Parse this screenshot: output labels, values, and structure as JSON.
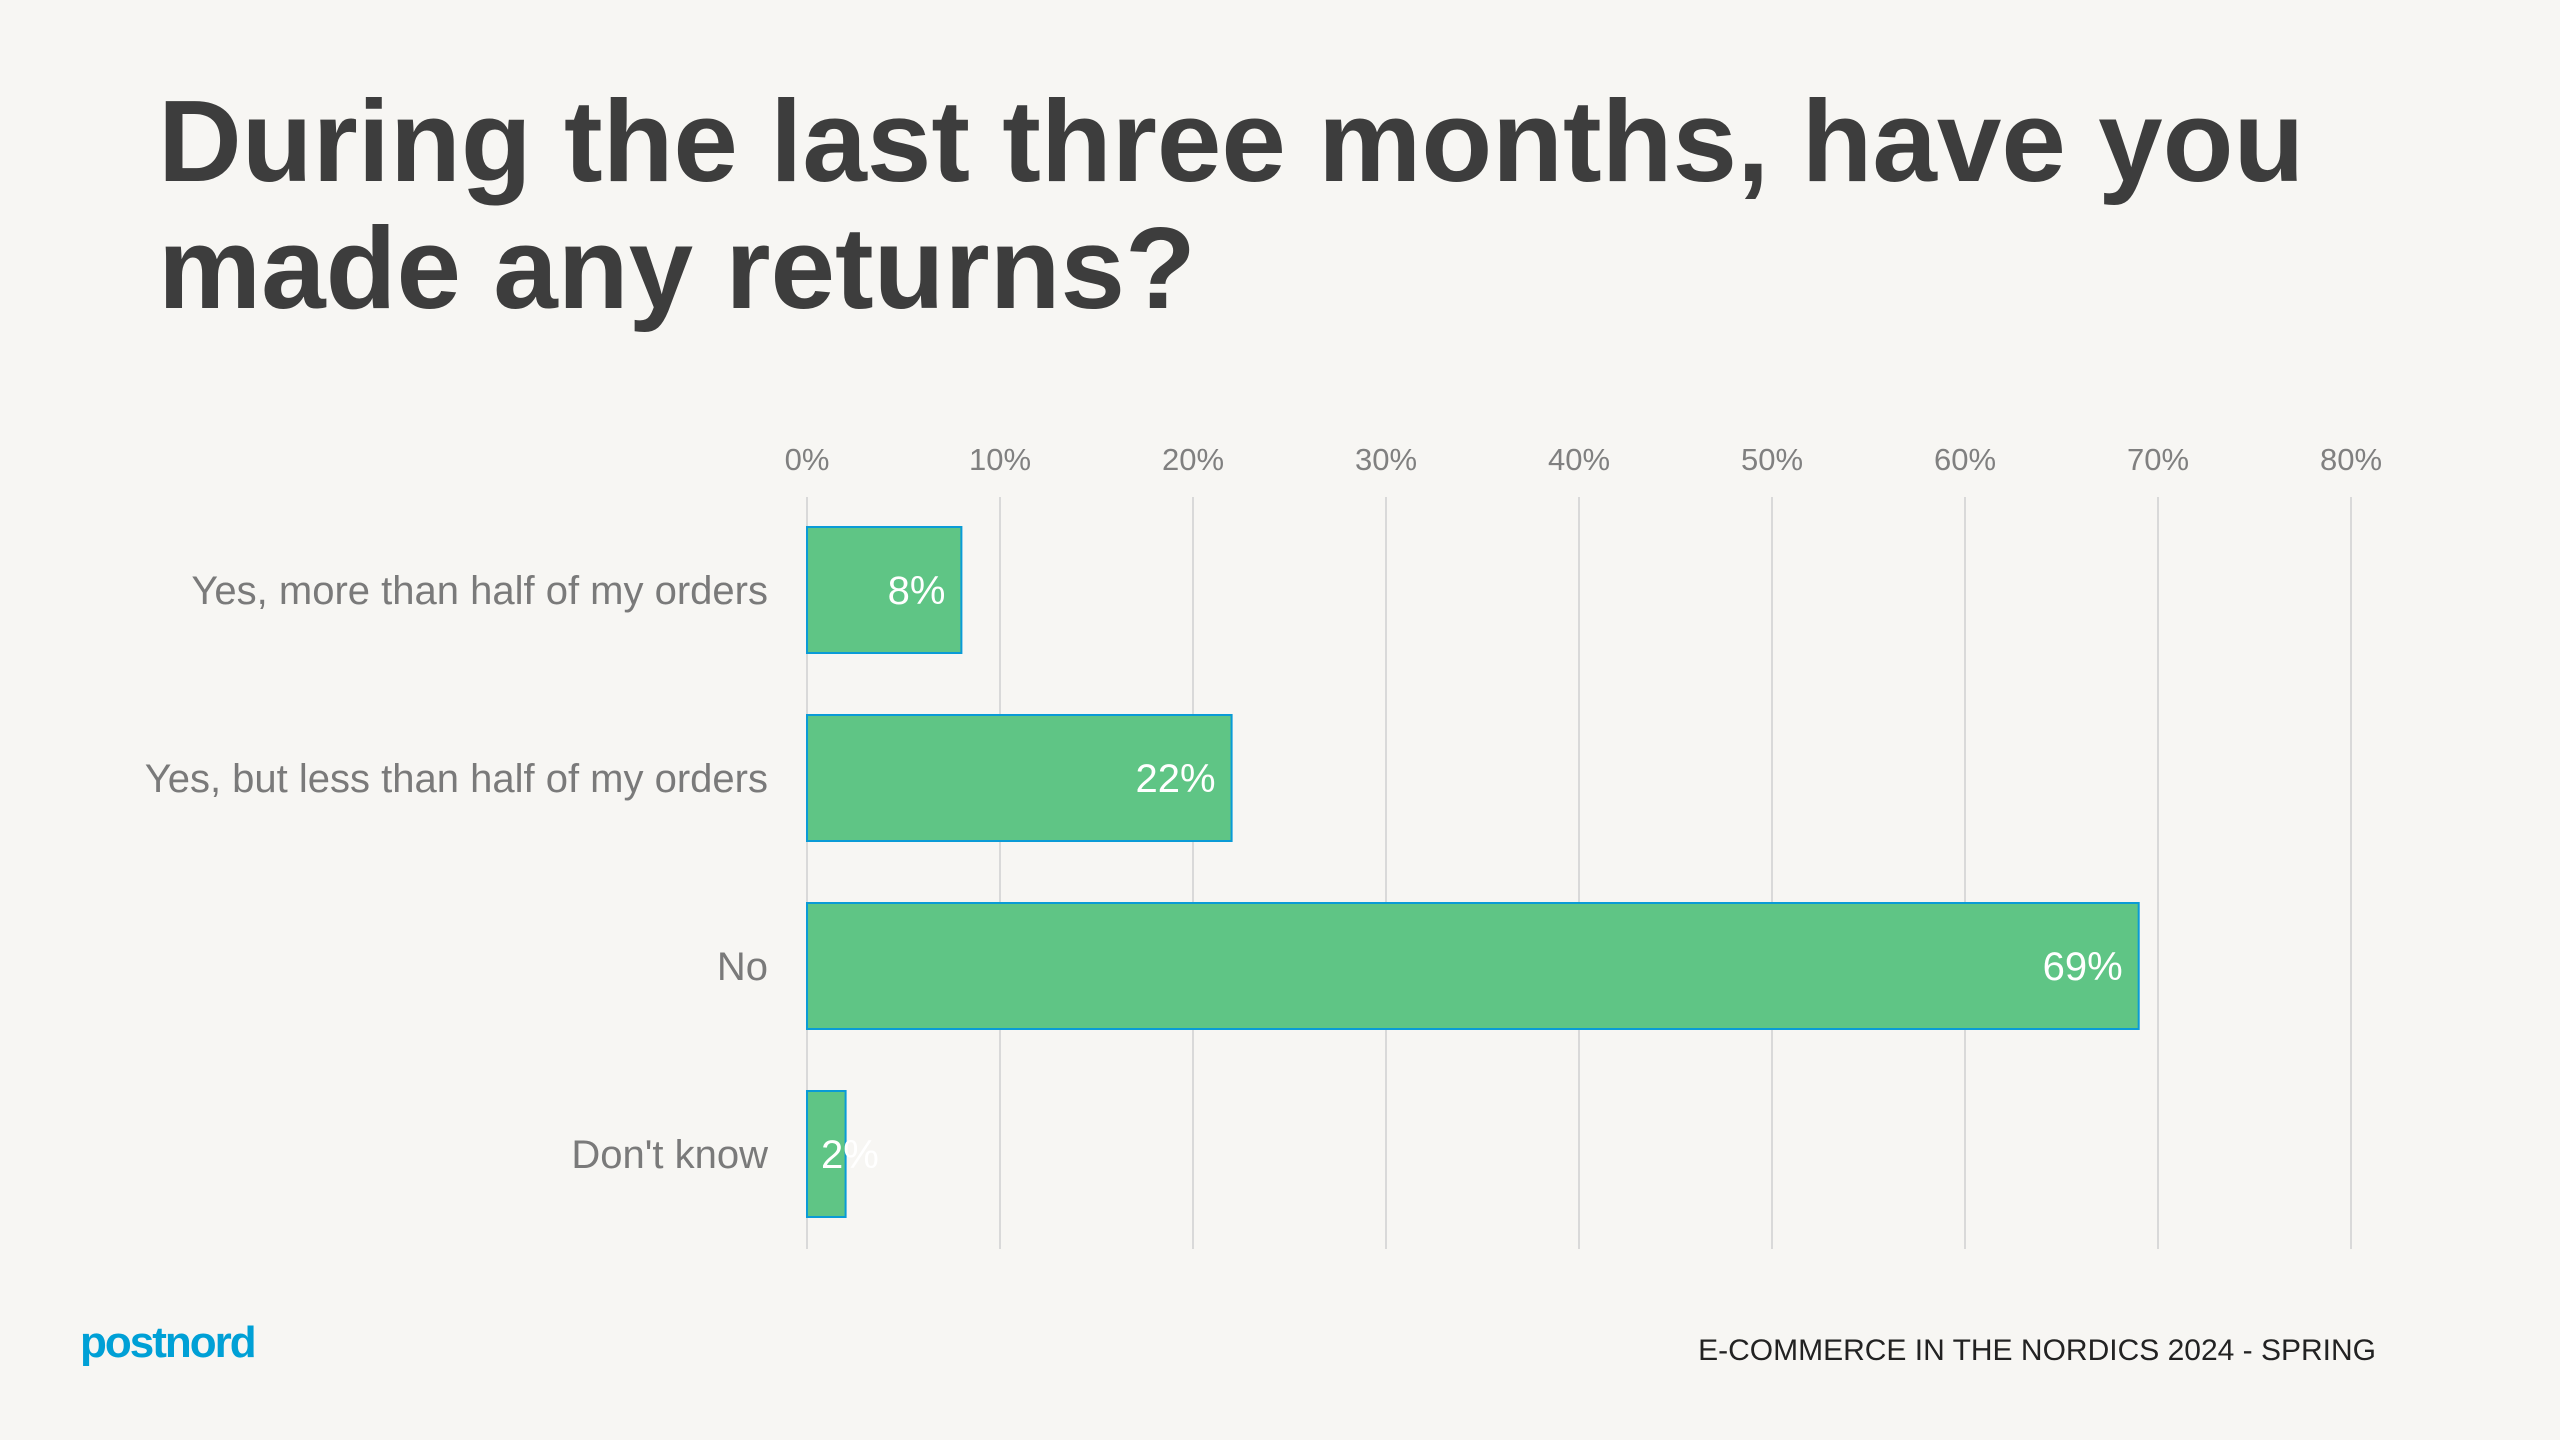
{
  "title": "During the last three months, have you made any returns?",
  "footer": {
    "logo_text": "postnord",
    "report": "E-COMMERCE IN THE NORDICS 2024 - SPRING"
  },
  "colors": {
    "bar": "#5fc585",
    "bar_border": "#0a9bd6",
    "grid": "#d9d9d9",
    "brand": "#00a0d6"
  },
  "chart_data": {
    "type": "bar",
    "orientation": "horizontal",
    "categories": [
      "Yes, more than half of my orders",
      "Yes, but less than half of my orders",
      "No",
      "Don't know"
    ],
    "values": [
      8,
      22,
      69,
      2
    ],
    "data_labels": [
      "8%",
      "22%",
      "69%",
      "2%"
    ],
    "xlim": [
      0,
      80
    ],
    "x_ticks": [
      "0%",
      "10%",
      "20%",
      "30%",
      "40%",
      "50%",
      "60%",
      "70%",
      "80%"
    ],
    "x_axis_position": "top",
    "grid": true,
    "title": "During the last three months, have you made any returns?"
  }
}
